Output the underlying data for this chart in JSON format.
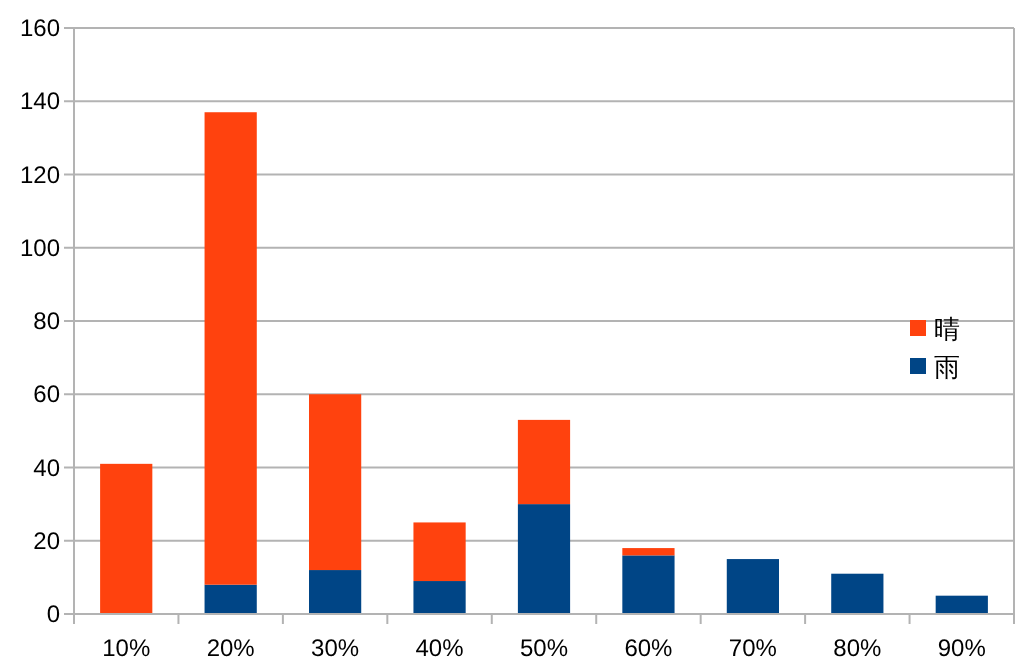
{
  "chart_data": {
    "type": "bar",
    "stacked": true,
    "categories": [
      "10%",
      "20%",
      "30%",
      "40%",
      "50%",
      "60%",
      "70%",
      "80%",
      "90%"
    ],
    "series": [
      {
        "name": "雨",
        "color": "#004586",
        "values": [
          0,
          8,
          12,
          9,
          30,
          16,
          15,
          11,
          5
        ]
      },
      {
        "name": "晴",
        "color": "#ff420e",
        "values": [
          41,
          129,
          48,
          16,
          23,
          2,
          0,
          0,
          0
        ]
      }
    ],
    "ylim": [
      0,
      160
    ],
    "yticks": [
      0,
      20,
      40,
      60,
      80,
      100,
      120,
      140,
      160
    ],
    "grid": "y",
    "legend": "right"
  }
}
